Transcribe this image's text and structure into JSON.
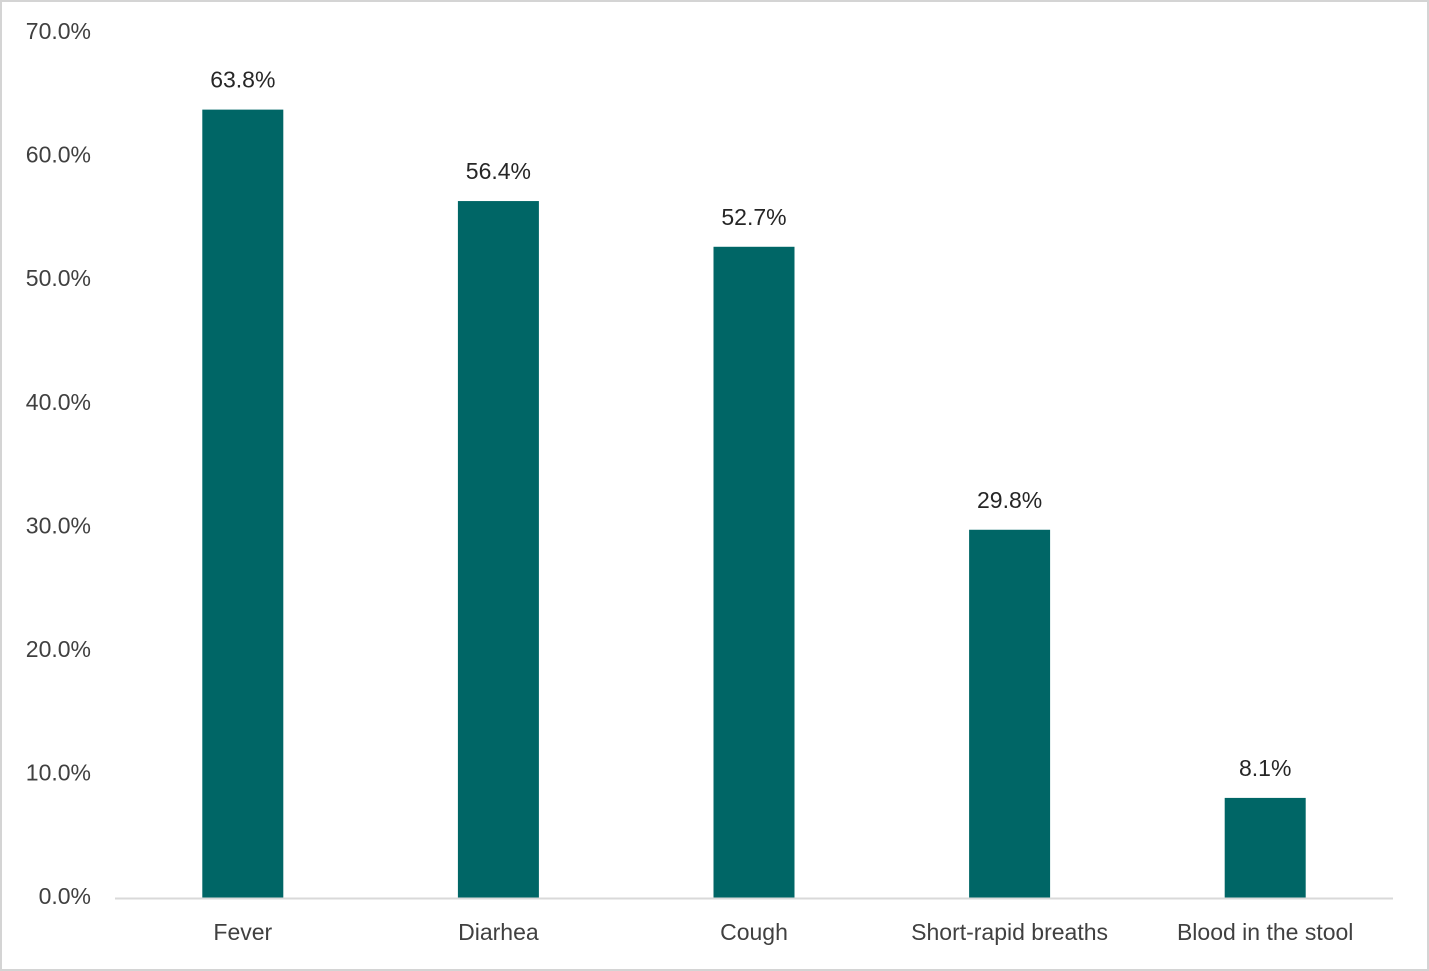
{
  "chart_data": {
    "type": "bar",
    "title": "",
    "xlabel": "",
    "ylabel": "",
    "categories": [
      "Fever",
      "Diarhea",
      "Cough",
      "Short-rapid breaths",
      "Blood in the stool"
    ],
    "values": [
      63.8,
      56.4,
      52.7,
      29.8,
      8.1
    ],
    "data_labels": [
      "63.8%",
      "56.4%",
      "52.7%",
      "29.8%",
      "8.1%"
    ],
    "ylim": [
      0,
      70
    ],
    "yticks": [
      0,
      10,
      20,
      30,
      40,
      50,
      60,
      70
    ],
    "ytick_labels": [
      "0.0%",
      "10.0%",
      "20.0%",
      "30.0%",
      "40.0%",
      "50.0%",
      "60.0%",
      "70.0%"
    ],
    "grid": false,
    "legend": "none",
    "bar_color": "#006666",
    "axis_color": "#d9d9d9"
  }
}
